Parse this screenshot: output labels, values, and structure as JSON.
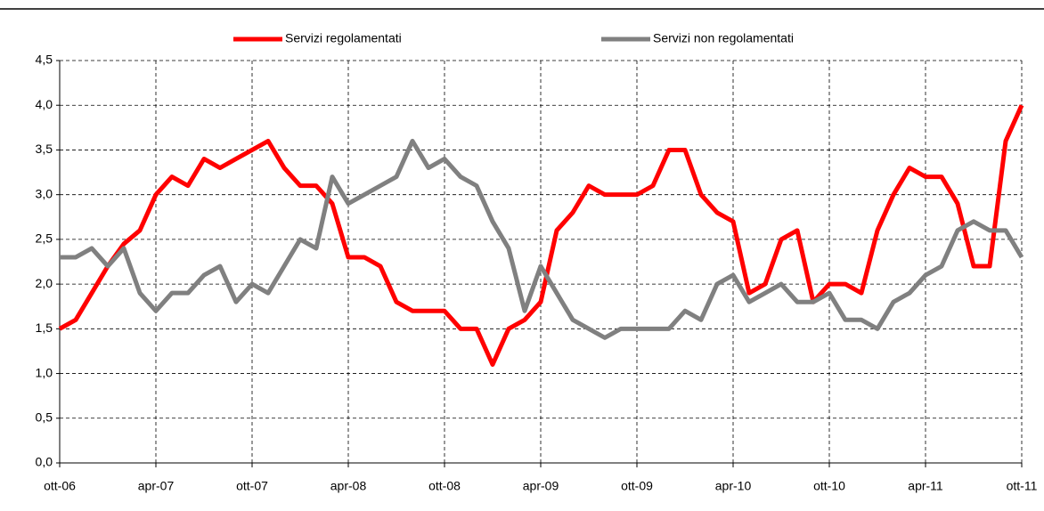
{
  "chart_data": {
    "type": "line",
    "categories": [
      "ott-06",
      null,
      null,
      null,
      null,
      null,
      "apr-07",
      null,
      null,
      null,
      null,
      null,
      "ott-07",
      null,
      null,
      null,
      null,
      null,
      "apr-08",
      null,
      null,
      null,
      null,
      null,
      "ott-08",
      null,
      null,
      null,
      null,
      null,
      "apr-09",
      null,
      null,
      null,
      null,
      null,
      "ott-09",
      null,
      null,
      null,
      null,
      null,
      "apr-10",
      null,
      null,
      null,
      null,
      null,
      "ott-10",
      null,
      null,
      null,
      null,
      null,
      "apr-11",
      null,
      null,
      null,
      null,
      null,
      "ott-11"
    ],
    "series": [
      {
        "name": "Servizi regolamentati",
        "color": "#ff0000",
        "values": [
          1.5,
          1.6,
          1.9,
          2.2,
          2.45,
          2.6,
          3.0,
          3.2,
          3.1,
          3.4,
          3.3,
          3.4,
          3.5,
          3.6,
          3.3,
          3.1,
          3.1,
          2.9,
          2.3,
          2.3,
          2.2,
          1.8,
          1.7,
          1.7,
          1.7,
          1.5,
          1.5,
          1.1,
          1.5,
          1.6,
          1.8,
          2.6,
          2.8,
          3.1,
          3.0,
          3.0,
          3.0,
          3.1,
          3.5,
          3.5,
          3.0,
          2.8,
          2.7,
          1.9,
          2.0,
          2.5,
          2.6,
          1.8,
          2.0,
          2.0,
          1.9,
          2.6,
          3.0,
          3.3,
          3.2,
          3.2,
          2.9,
          2.2,
          2.2,
          3.6,
          4.0
        ]
      },
      {
        "name": "Servizi non regolamentati",
        "color": "#808080",
        "values": [
          2.3,
          2.3,
          2.4,
          2.2,
          2.4,
          1.9,
          1.7,
          1.9,
          1.9,
          2.1,
          2.2,
          1.8,
          2.0,
          1.9,
          2.2,
          2.5,
          2.4,
          3.2,
          2.9,
          3.0,
          3.1,
          3.2,
          3.6,
          3.3,
          3.4,
          3.2,
          3.1,
          2.7,
          2.4,
          1.7,
          2.2,
          1.9,
          1.6,
          1.5,
          1.4,
          1.5,
          1.5,
          1.5,
          1.5,
          1.7,
          1.6,
          2.0,
          2.1,
          1.8,
          1.9,
          2.0,
          1.8,
          1.8,
          1.9,
          1.6,
          1.6,
          1.5,
          1.8,
          1.9,
          2.1,
          2.2,
          2.6,
          2.7,
          2.6,
          2.6,
          2.3
        ]
      }
    ],
    "ylim": [
      0,
      4.5
    ],
    "yticks": [
      {
        "value": 0,
        "label": "0,0"
      },
      {
        "value": 0.5,
        "label": "0,5"
      },
      {
        "value": 1,
        "label": "1,0"
      },
      {
        "value": 1.5,
        "label": "1,5"
      },
      {
        "value": 2,
        "label": "2,0"
      },
      {
        "value": 2.5,
        "label": "2,5"
      },
      {
        "value": 3,
        "label": "3,0"
      },
      {
        "value": 3.5,
        "label": "3,5"
      },
      {
        "value": 4,
        "label": "4,0"
      },
      {
        "value": 4.5,
        "label": "4,5"
      }
    ],
    "grid": true
  }
}
